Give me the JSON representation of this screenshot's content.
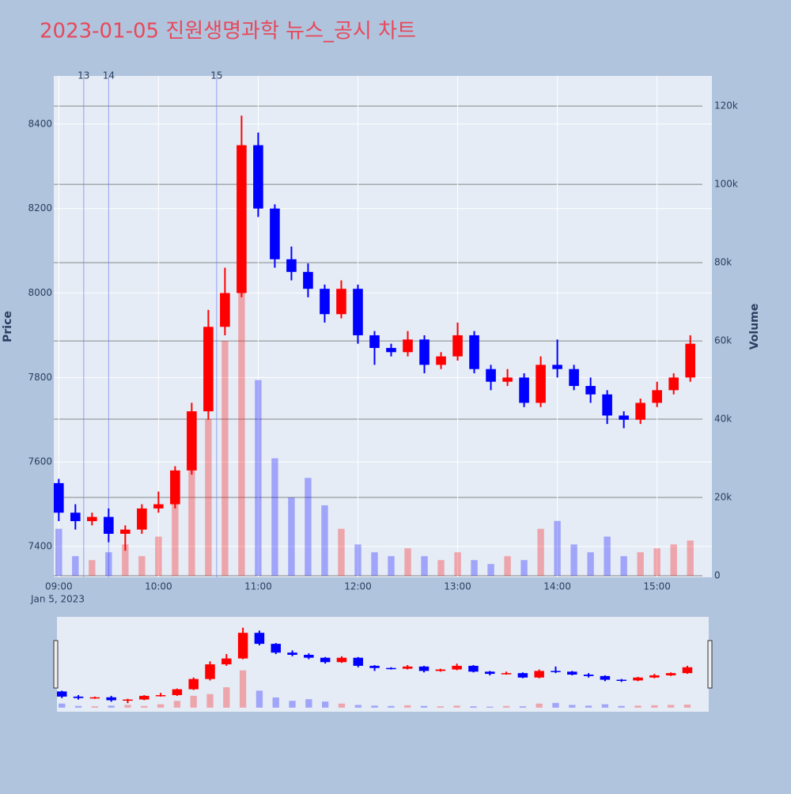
{
  "chart_data": {
    "type": "candlestick",
    "title": "2023-01-05 진원생명과학 뉴스_공시 차트",
    "date_label": "Jan 5, 2023",
    "y_label": "Price",
    "y2_label": "Volume",
    "increasing_color": "#ff0000",
    "decreasing_color": "#0000ff",
    "x": [
      "09:00",
      "09:10",
      "09:20",
      "09:30",
      "09:40",
      "09:50",
      "10:00",
      "10:10",
      "10:20",
      "10:30",
      "10:40",
      "10:50",
      "11:00",
      "11:10",
      "11:20",
      "11:30",
      "11:40",
      "11:50",
      "12:00",
      "12:10",
      "12:20",
      "12:30",
      "12:40",
      "12:50",
      "13:00",
      "13:10",
      "13:20",
      "13:30",
      "13:40",
      "13:50",
      "14:00",
      "14:10",
      "14:20",
      "14:30",
      "14:40",
      "14:50",
      "15:00",
      "15:10",
      "15:20"
    ],
    "open": [
      7550,
      7480,
      7460,
      7470,
      7430,
      7440,
      7490,
      7500,
      7580,
      7720,
      7920,
      8000,
      8350,
      8200,
      8080,
      8050,
      8010,
      7950,
      8010,
      7900,
      7870,
      7860,
      7890,
      7830,
      7850,
      7900,
      7820,
      7790,
      7800,
      7740,
      7830,
      7820,
      7780,
      7760,
      7710,
      7700,
      7740,
      7770,
      7800
    ],
    "high": [
      7560,
      7500,
      7480,
      7490,
      7450,
      7500,
      7530,
      7590,
      7740,
      7960,
      8060,
      8420,
      8380,
      8210,
      8110,
      8070,
      8020,
      8030,
      8020,
      7910,
      7880,
      7910,
      7900,
      7860,
      7930,
      7910,
      7830,
      7820,
      7810,
      7850,
      7890,
      7830,
      7800,
      7770,
      7720,
      7750,
      7790,
      7810,
      7900
    ],
    "low": [
      7460,
      7440,
      7450,
      7410,
      7390,
      7430,
      7480,
      7490,
      7570,
      7700,
      7900,
      7990,
      8180,
      8060,
      8030,
      7990,
      7930,
      7940,
      7880,
      7830,
      7850,
      7850,
      7810,
      7820,
      7840,
      7810,
      7770,
      7780,
      7730,
      7730,
      7800,
      7770,
      7740,
      7690,
      7680,
      7690,
      7730,
      7760,
      7790
    ],
    "close": [
      7480,
      7460,
      7470,
      7430,
      7440,
      7490,
      7500,
      7580,
      7720,
      7920,
      8000,
      8350,
      8200,
      8080,
      8050,
      8010,
      7950,
      8010,
      7900,
      7870,
      7860,
      7890,
      7830,
      7850,
      7900,
      7820,
      7790,
      7800,
      7740,
      7830,
      7820,
      7780,
      7760,
      7710,
      7700,
      7740,
      7770,
      7800,
      7880
    ],
    "volume": [
      12000,
      5000,
      4000,
      6000,
      8000,
      5000,
      10000,
      20000,
      35000,
      40000,
      60000,
      110000,
      50000,
      30000,
      20000,
      25000,
      18000,
      12000,
      8000,
      6000,
      5000,
      7000,
      5000,
      4000,
      6000,
      4000,
      3000,
      5000,
      4000,
      12000,
      14000,
      8000,
      6000,
      10000,
      5000,
      6000,
      7000,
      8000,
      9000
    ],
    "news_markers": [
      {
        "x": "09:15",
        "label": "13"
      },
      {
        "x": "09:30",
        "label": "14"
      },
      {
        "x": "10:35",
        "label": "15"
      }
    ],
    "xlim": [
      "08:57",
      "15:33"
    ],
    "xticks": [
      "09:00",
      "10:00",
      "11:00",
      "12:00",
      "13:00",
      "14:00",
      "15:00"
    ],
    "ylim": [
      7327,
      8514
    ],
    "yticks": [
      7400,
      7600,
      7800,
      8000,
      8200,
      8400
    ],
    "y2lim": [
      -400,
      127700
    ],
    "y2ticks": [
      0,
      {
        "value": 20000,
        "label": "20k"
      },
      {
        "value": 40000,
        "label": "40k"
      },
      {
        "value": 60000,
        "label": "60k"
      },
      {
        "value": 80000,
        "label": "80k"
      },
      {
        "value": 100000,
        "label": "100k"
      },
      {
        "value": 120000,
        "label": "120k"
      }
    ],
    "grid": true
  }
}
